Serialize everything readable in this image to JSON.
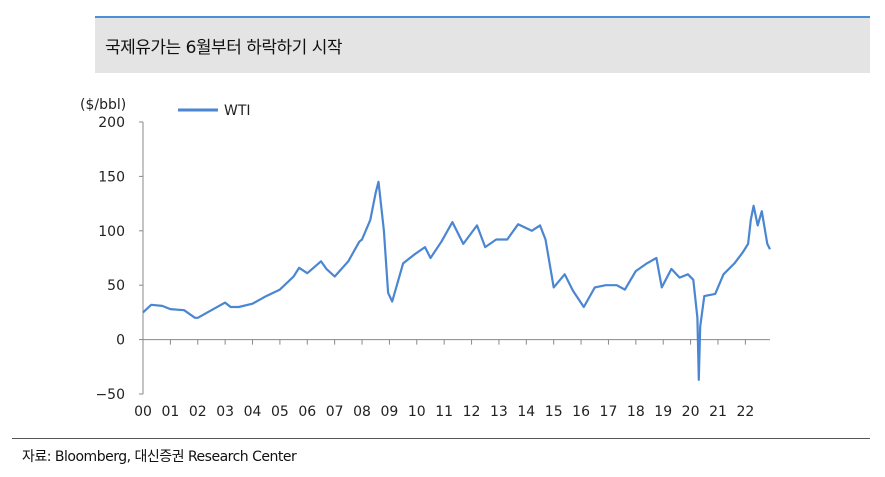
{
  "header": {
    "title": "국제유가는 6월부터 하락하기 시작"
  },
  "footer": {
    "source": "자료: Bloomberg, 대신증권 Research Center"
  },
  "colors": {
    "series": "#4a86d1",
    "accent_rule": "#4a90d9",
    "title_bg": "#e4e4e4"
  },
  "chart_data": {
    "type": "line",
    "title": "",
    "ylabel": "($/bbl)",
    "ylim": [
      -50,
      200
    ],
    "yticks": [
      "200",
      "150",
      "100",
      "50",
      "0",
      "−50"
    ],
    "xlim": [
      2000,
      2022.9
    ],
    "xticks": [
      "00",
      "01",
      "02",
      "03",
      "04",
      "05",
      "06",
      "07",
      "08",
      "09",
      "10",
      "11",
      "12",
      "13",
      "14",
      "15",
      "16",
      "17",
      "18",
      "19",
      "20",
      "21",
      "22"
    ],
    "legend": {
      "position": "top-left",
      "entries": [
        "WTI"
      ]
    },
    "grid": false,
    "series": [
      {
        "name": "WTI",
        "x": [
          2000,
          2000.3,
          2000.7,
          2001,
          2001.5,
          2001.9,
          2002,
          2002.5,
          2003,
          2003.2,
          2003.5,
          2004,
          2004.5,
          2005,
          2005.5,
          2005.7,
          2006,
          2006.5,
          2006.7,
          2007,
          2007.5,
          2007.9,
          2008,
          2008.3,
          2008.5,
          2008.6,
          2008.8,
          2008.95,
          2009.1,
          2009.5,
          2009.9,
          2010.3,
          2010.5,
          2010.9,
          2011.3,
          2011.7,
          2012.2,
          2012.5,
          2012.9,
          2013.3,
          2013.7,
          2014.2,
          2014.5,
          2014.7,
          2015,
          2015.4,
          2015.7,
          2016.1,
          2016.5,
          2016.9,
          2017.3,
          2017.6,
          2018,
          2018.4,
          2018.75,
          2018.95,
          2019.3,
          2019.6,
          2019.9,
          2020.1,
          2020.25,
          2020.3,
          2020.35,
          2020.5,
          2020.9,
          2021.2,
          2021.6,
          2021.9,
          2022.1,
          2022.2,
          2022.3,
          2022.45,
          2022.6,
          2022.8,
          2022.9
        ],
        "values": [
          25,
          32,
          31,
          28,
          27,
          20,
          20,
          27,
          34,
          30,
          30,
          33,
          40,
          46,
          58,
          66,
          61,
          72,
          65,
          58,
          72,
          90,
          92,
          110,
          135,
          145,
          100,
          43,
          35,
          70,
          78,
          85,
          75,
          90,
          108,
          88,
          105,
          85,
          92,
          92,
          106,
          100,
          105,
          92,
          48,
          60,
          45,
          30,
          48,
          50,
          50,
          46,
          63,
          70,
          75,
          48,
          65,
          57,
          60,
          55,
          20,
          -37,
          12,
          40,
          42,
          60,
          70,
          80,
          88,
          110,
          123,
          105,
          118,
          88,
          83
        ]
      }
    ]
  }
}
